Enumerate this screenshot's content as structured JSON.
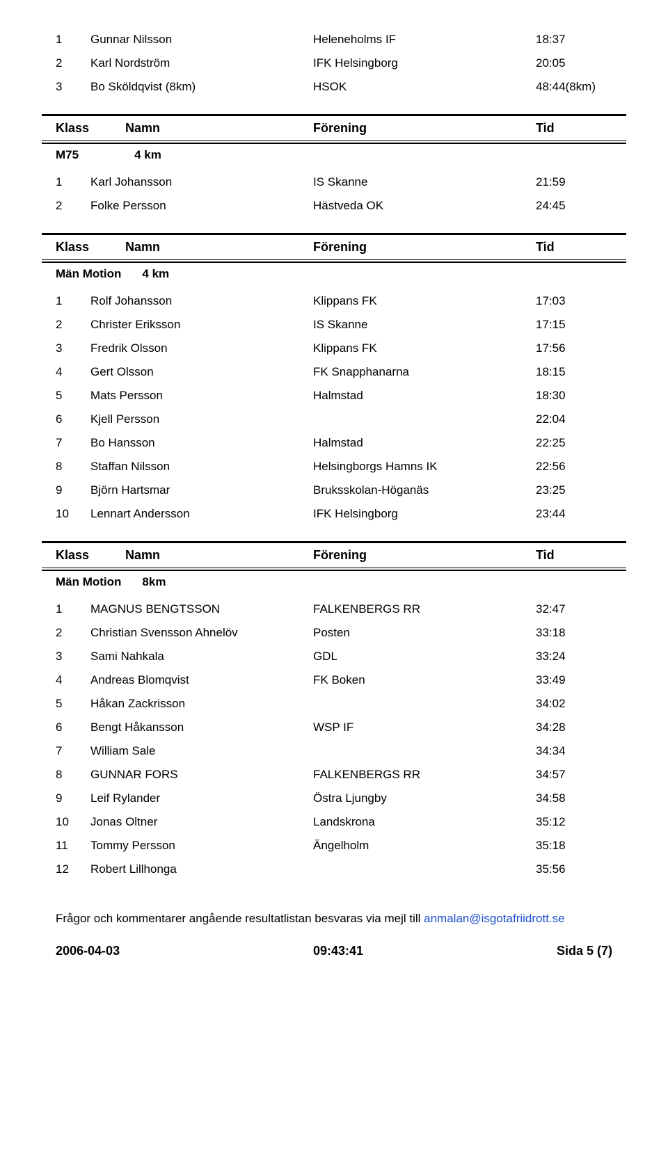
{
  "labels": {
    "klass": "Klass",
    "namn": "Namn",
    "forening": "Förening",
    "tid": "Tid"
  },
  "top_rows": [
    {
      "place": "1",
      "name": "Gunnar Nilsson",
      "club": "Heleneholms IF",
      "time": "18:37"
    },
    {
      "place": "2",
      "name": "Karl Nordström",
      "club": "IFK Helsingborg",
      "time": "20:05"
    },
    {
      "place": "3",
      "name": "Bo Sköldqvist (8km)",
      "club": "HSOK",
      "time": "48:44(8km)"
    }
  ],
  "group_m75": {
    "class_label": "M75",
    "distance": "4 km",
    "rows": [
      {
        "place": "1",
        "name": "Karl Johansson",
        "club": "IS Skanne",
        "time": "21:59"
      },
      {
        "place": "2",
        "name": "Folke Persson",
        "club": "Hästveda OK",
        "time": "24:45"
      }
    ]
  },
  "group_men4": {
    "class_label": "Män Motion",
    "distance": "4 km",
    "rows": [
      {
        "place": "1",
        "name": "Rolf Johansson",
        "club": "Klippans FK",
        "time": "17:03"
      },
      {
        "place": "2",
        "name": "Christer Eriksson",
        "club": "IS Skanne",
        "time": "17:15"
      },
      {
        "place": "3",
        "name": "Fredrik Olsson",
        "club": "Klippans FK",
        "time": "17:56"
      },
      {
        "place": "4",
        "name": "Gert Olsson",
        "club": "FK Snapphanarna",
        "time": "18:15"
      },
      {
        "place": "5",
        "name": "Mats Persson",
        "club": "Halmstad",
        "time": "18:30"
      },
      {
        "place": "6",
        "name": "Kjell Persson",
        "club": "",
        "time": "22:04"
      },
      {
        "place": "7",
        "name": "Bo Hansson",
        "club": "Halmstad",
        "time": "22:25"
      },
      {
        "place": "8",
        "name": "Staffan Nilsson",
        "club": "Helsingborgs Hamns IK",
        "time": "22:56"
      },
      {
        "place": "9",
        "name": "Björn Hartsmar",
        "club": "Bruksskolan-Höganäs",
        "time": "23:25"
      },
      {
        "place": "10",
        "name": "Lennart Andersson",
        "club": "IFK Helsingborg",
        "time": "23:44"
      }
    ]
  },
  "group_men8": {
    "class_label": "Män Motion",
    "distance": "8km",
    "rows": [
      {
        "place": "1",
        "name": "MAGNUS BENGTSSON",
        "club": "FALKENBERGS RR",
        "time": "32:47"
      },
      {
        "place": "2",
        "name": "Christian Svensson Ahnelöv",
        "club": "Posten",
        "time": "33:18"
      },
      {
        "place": "3",
        "name": "Sami Nahkala",
        "club": "GDL",
        "time": "33:24"
      },
      {
        "place": "4",
        "name": "Andreas Blomqvist",
        "club": "FK Boken",
        "time": "33:49"
      },
      {
        "place": "5",
        "name": "Håkan Zackrisson",
        "club": "",
        "time": "34:02"
      },
      {
        "place": "6",
        "name": "Bengt Håkansson",
        "club": "WSP IF",
        "time": "34:28"
      },
      {
        "place": "7",
        "name": "William Sale",
        "club": "",
        "time": "34:34"
      },
      {
        "place": "8",
        "name": "GUNNAR FORS",
        "club": "FALKENBERGS RR",
        "time": "34:57"
      },
      {
        "place": "9",
        "name": "Leif Rylander",
        "club": "Östra Ljungby",
        "time": "34:58"
      },
      {
        "place": "10",
        "name": "Jonas Oltner",
        "club": "Landskrona",
        "time": "35:12"
      },
      {
        "place": "11",
        "name": "Tommy Persson",
        "club": "Ängelholm",
        "time": "35:18"
      },
      {
        "place": "12",
        "name": "Robert Lillhonga",
        "club": "",
        "time": "35:56"
      }
    ]
  },
  "footer": {
    "note_text": "Frågor och kommentarer angående resultatlistan besvaras via mejl till ",
    "note_link": "anmalan@isgotafriidrott.se",
    "date": "2006-04-03",
    "time": "09:43:41",
    "page": "Sida 5 (7)"
  }
}
